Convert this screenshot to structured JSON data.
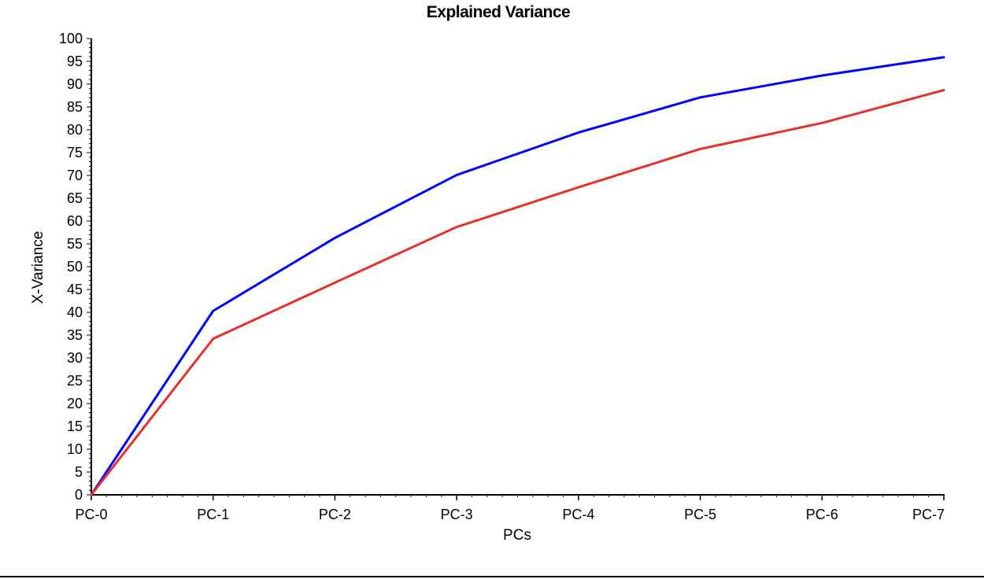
{
  "chart_data": {
    "type": "line",
    "title": "Explained Variance",
    "xlabel": "PCs",
    "ylabel": "X-Variance",
    "categories": [
      "PC-0",
      "PC-1",
      "PC-2",
      "PC-3",
      "PC-4",
      "PC-5",
      "PC-6",
      "PC-7"
    ],
    "ylim": [
      0,
      100
    ],
    "yticks": [
      0,
      5,
      10,
      15,
      20,
      25,
      30,
      35,
      40,
      45,
      50,
      55,
      60,
      65,
      70,
      75,
      80,
      85,
      90,
      95,
      100
    ],
    "grid": false,
    "series": [
      {
        "color": "#0000ff",
        "values": [
          0,
          40.3,
          56.3,
          70.1,
          79.4,
          87.1,
          91.9,
          95.9
        ]
      },
      {
        "color": "#e8302a",
        "values": [
          0,
          34.2,
          46.5,
          58.7,
          67.4,
          75.8,
          81.5,
          88.7
        ]
      }
    ]
  }
}
